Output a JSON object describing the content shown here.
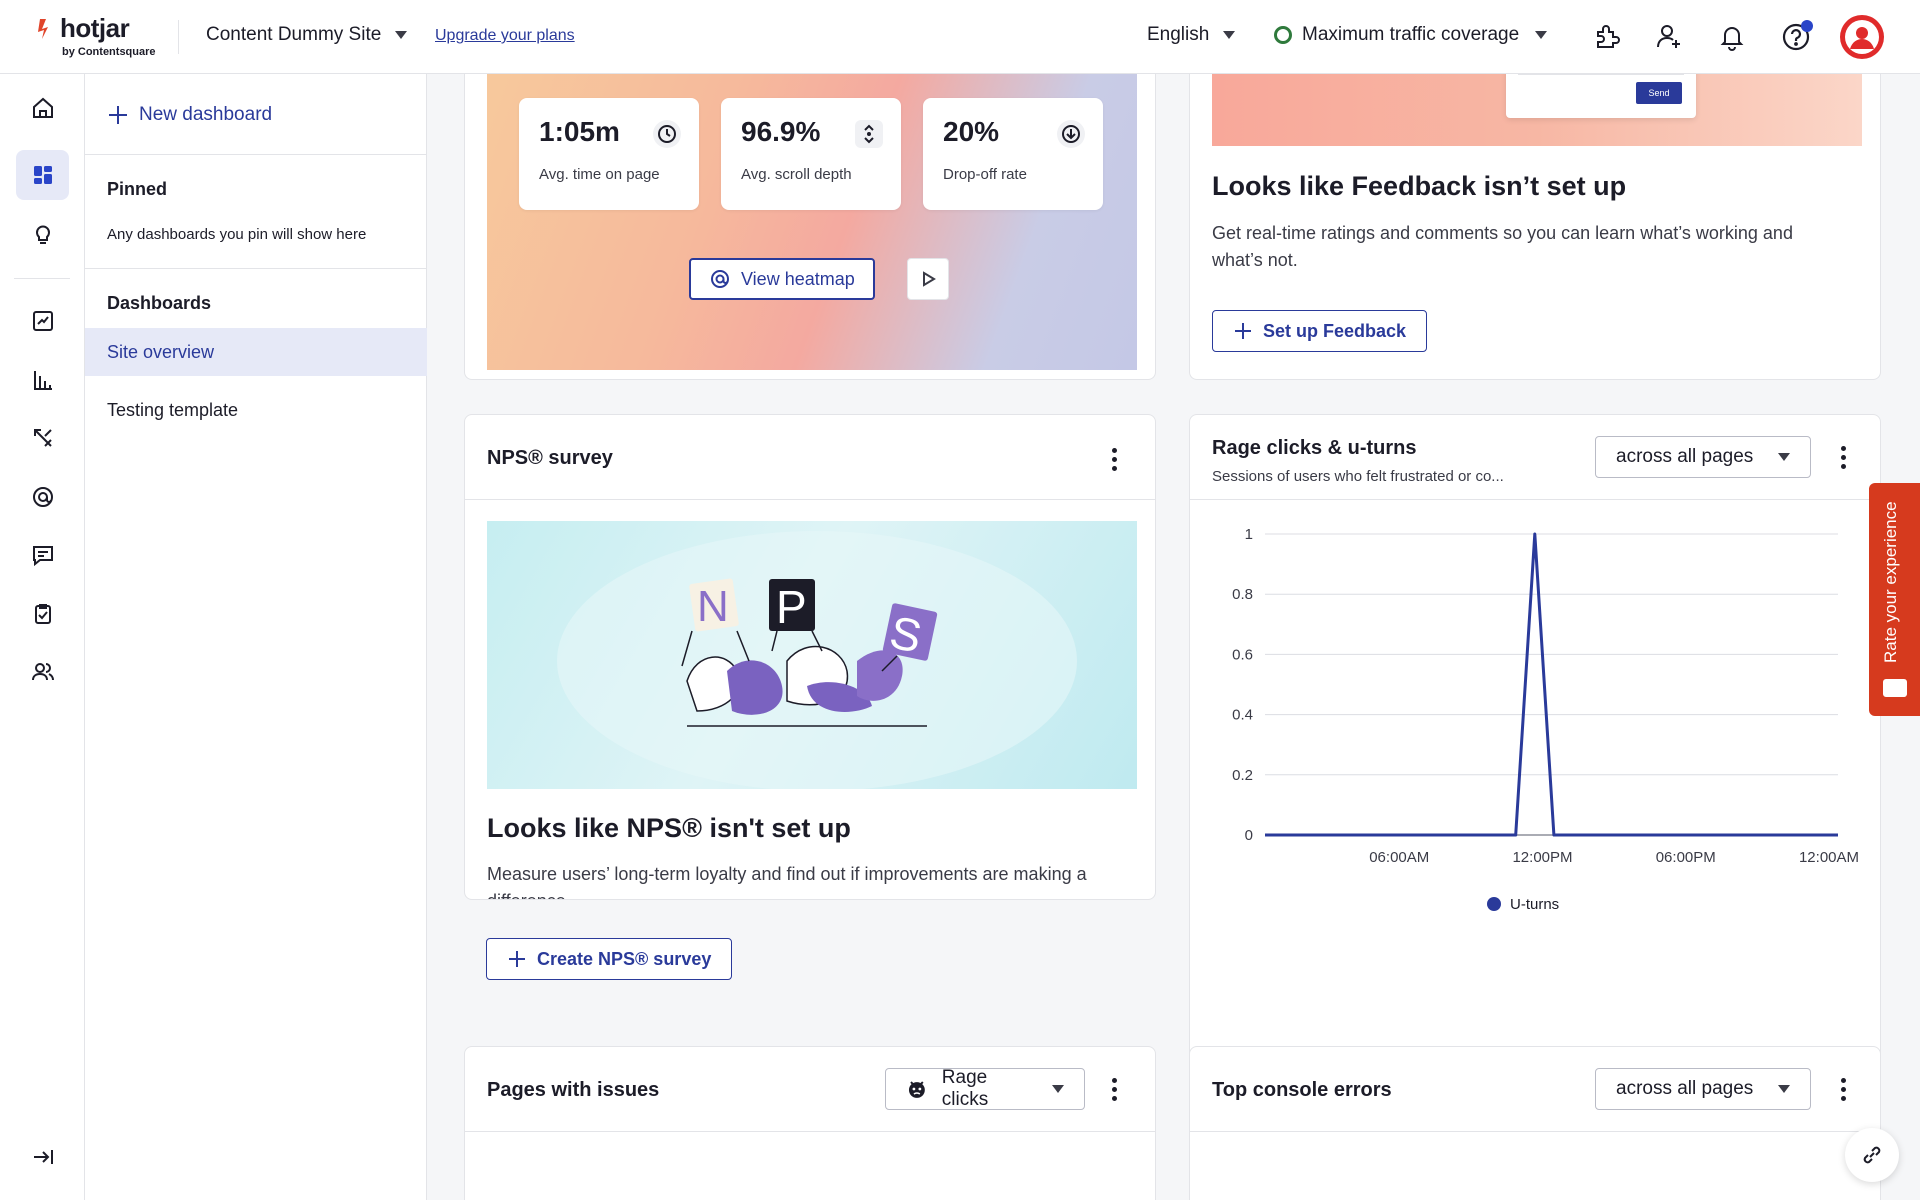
{
  "topbar": {
    "logo": {
      "brand": "hotjar",
      "sub": "by Contentsquare"
    },
    "site_name": "Content Dummy Site",
    "upgrade_link": "Upgrade your plans",
    "language": "English",
    "traffic": "Maximum traffic coverage",
    "icons": [
      "integrations-icon",
      "invite-user-icon",
      "bell-icon",
      "help-icon",
      "avatar"
    ]
  },
  "rail": {
    "items": [
      "home-icon",
      "dashboard-icon",
      "lightbulb-icon",
      "trends-icon",
      "funnels-icon",
      "journeys-icon",
      "heatmaps-icon",
      "feedback-icon",
      "surveys-icon",
      "interviews-icon"
    ],
    "collapse_icon": "collapse-icon"
  },
  "dashboards_panel": {
    "new_dashboard": "New dashboard",
    "pinned_heading": "Pinned",
    "pinned_note": "Any dashboards you pin will show here",
    "dashboards_heading": "Dashboards",
    "items": [
      {
        "label": "Site overview",
        "active": true
      },
      {
        "label": "Testing template",
        "active": false
      }
    ]
  },
  "heatmap_card": {
    "metrics": [
      {
        "value": "1:05m",
        "label": "Avg. time on page",
        "icon": "clock-icon"
      },
      {
        "value": "96.9%",
        "label": "Avg. scroll depth",
        "icon": "scroll-icon"
      },
      {
        "value": "20%",
        "label": "Drop-off rate",
        "icon": "drop-icon"
      }
    ],
    "view_heatmap": "View heatmap"
  },
  "feedback_card": {
    "preview_send": "Send",
    "heading": "Looks like Feedback isn’t set up",
    "body": "Get real-time ratings and comments so you can learn what’s working and what’s not.",
    "button": "Set up Feedback"
  },
  "nps_card": {
    "title": "NPS® survey",
    "heading": "Looks like NPS® isn't set up",
    "body": "Measure users’ long-term loyalty and find out if improvements are making a difference.",
    "button": "Create NPS® survey",
    "letters": [
      "N",
      "P",
      "S"
    ]
  },
  "rage_card": {
    "title": "Rage clicks & u-turns",
    "subtitle": "Sessions of users who felt frustrated or co...",
    "filter": "across all pages",
    "legend": "U-turns",
    "series_color": "#2a3a9a"
  },
  "pages_card": {
    "title": "Pages with issues",
    "filter": "Rage clicks"
  },
  "console_card": {
    "title": "Top console errors",
    "filter": "across all pages"
  },
  "rate_tab": "Rate your experience",
  "chart_data": {
    "type": "line",
    "x_ticks": [
      "06:00AM",
      "12:00PM",
      "06:00PM",
      "12:00AM"
    ],
    "y_ticks": [
      "1",
      "0.8",
      "0.6",
      "0.4",
      "0.2",
      "0"
    ],
    "ylim": [
      0,
      1
    ],
    "xlim_hours": [
      0,
      24
    ],
    "grid": true,
    "legend_position": "bottom-center",
    "series": [
      {
        "name": "U-turns",
        "points": [
          [
            0,
            0
          ],
          [
            10.5,
            0
          ],
          [
            11.3,
            1
          ],
          [
            12.1,
            0
          ],
          [
            24,
            0
          ]
        ]
      }
    ]
  }
}
